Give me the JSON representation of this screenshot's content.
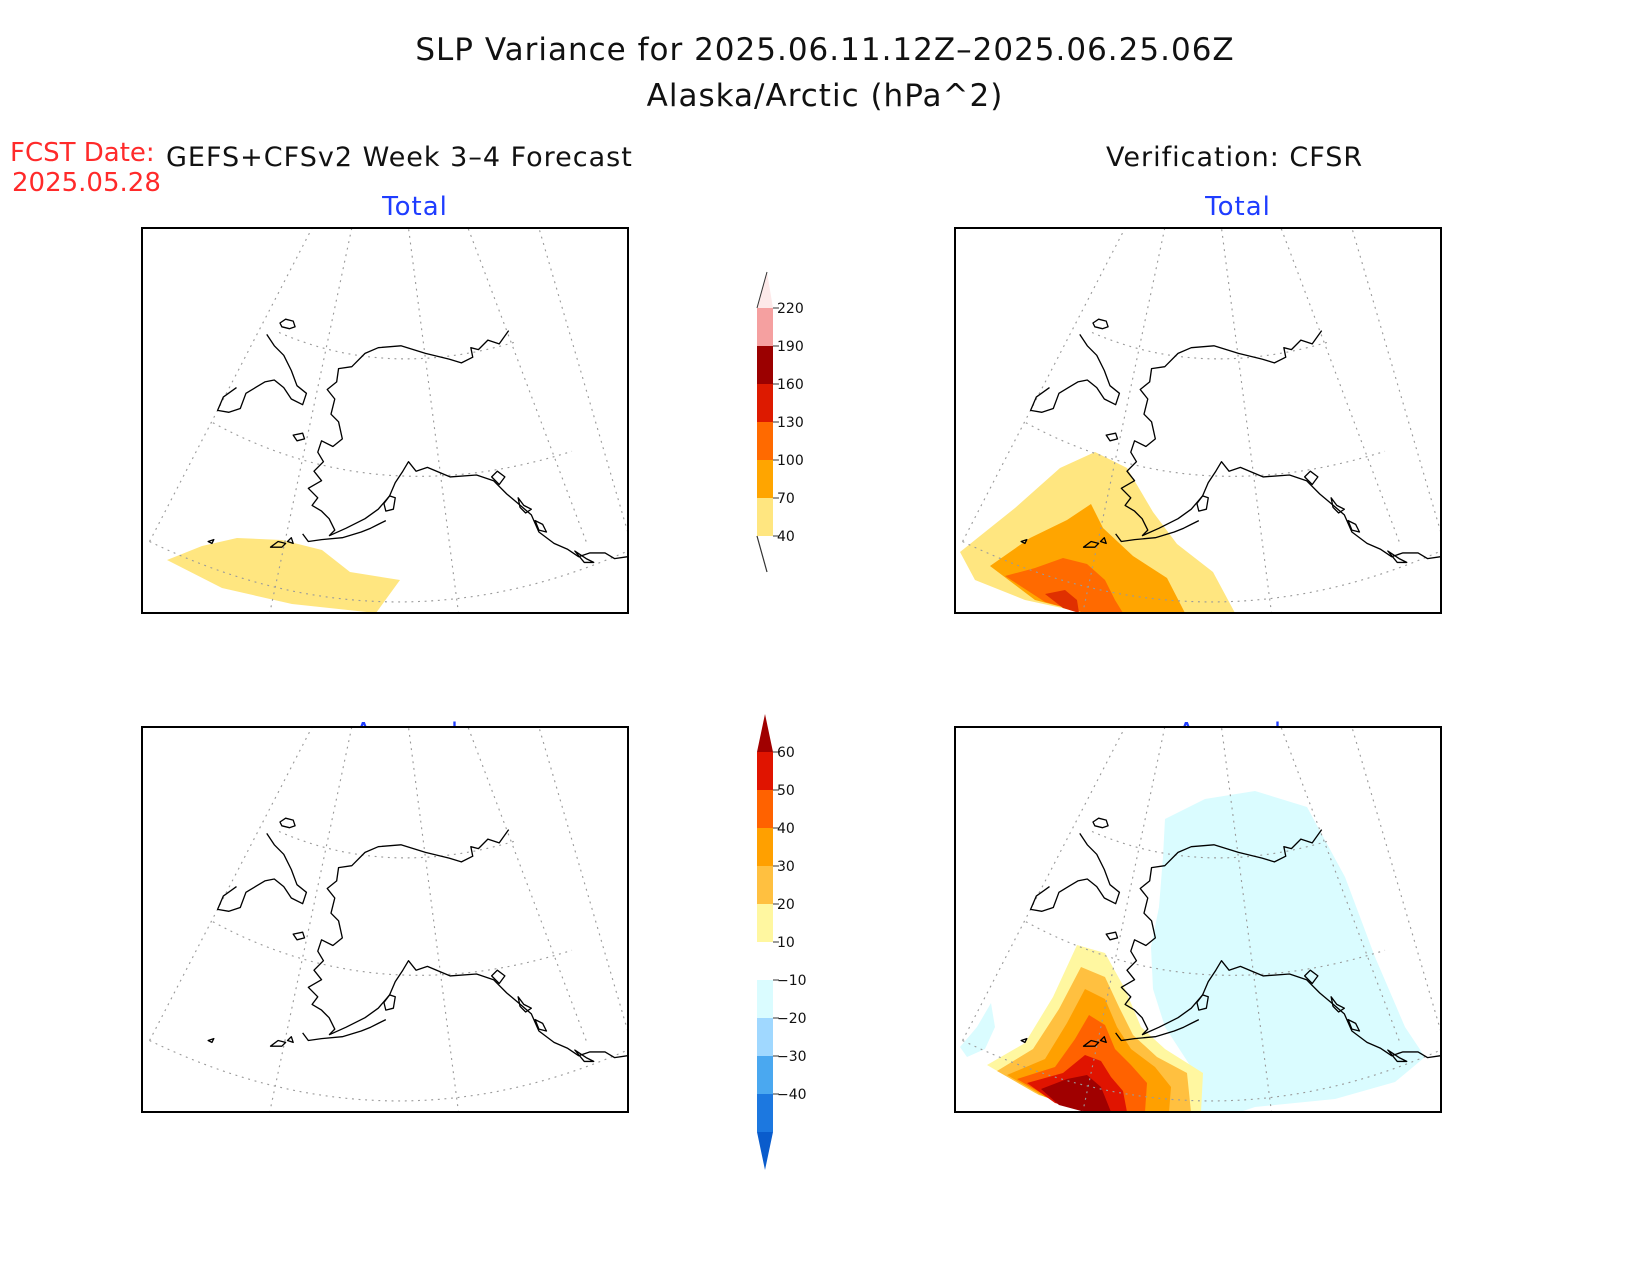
{
  "title": {
    "line1": "SLP Variance for 2025.06.11.12Z–2025.06.25.06Z",
    "line2": "Alaska/Arctic (hPa^2)"
  },
  "forecast": {
    "label": "FCST Date:",
    "date": "2025.05.28",
    "model": "GEFS+CFSv2 Week 3–4 Forecast"
  },
  "verification": {
    "label": "Verification: CFSR"
  },
  "panels": {
    "total_forecast": "Total",
    "total_verification": "Total",
    "anomaly_forecast": "Anomaly",
    "anomaly_verification": "Anomaly"
  },
  "colorbars": {
    "total": {
      "levels": [
        "220",
        "190",
        "160",
        "130",
        "100",
        "70",
        "40"
      ],
      "colors": [
        "#fde9e9",
        "#f5a0a0",
        "#9b0000",
        "#dd1a00",
        "#ff6a00",
        "#ffa500",
        "#ffe680"
      ]
    },
    "anomaly": {
      "levels": [
        "60",
        "50",
        "40",
        "30",
        "20",
        "10",
        "−10",
        "−20",
        "−30",
        "−40"
      ],
      "colors": [
        "#a00000",
        "#e01400",
        "#ff6200",
        "#ffa000",
        "#ffc040",
        "#fff7a0",
        "#ffffff",
        "#dafcff",
        "#a0d8ff",
        "#4aa8f0",
        "#1c78e0",
        "#0a5ccc"
      ]
    }
  }
}
